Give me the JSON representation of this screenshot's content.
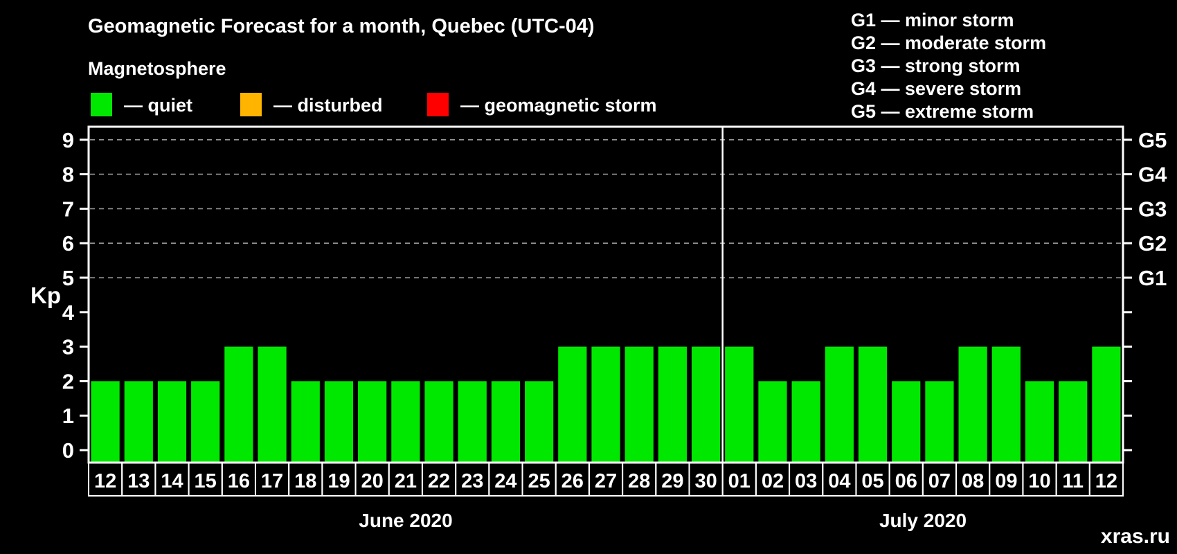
{
  "header": {
    "title": "Geomagnetic Forecast for a month, Quebec (UTC-04)",
    "subtitle": "Magnetosphere"
  },
  "legend": {
    "items": [
      {
        "key": "quiet",
        "label": "— quiet"
      },
      {
        "key": "disturbed",
        "label": "— disturbed"
      },
      {
        "key": "storm",
        "label": "— geomagnetic storm"
      }
    ]
  },
  "g_legend": {
    "items": [
      "G1 — minor storm",
      "G2 — moderate storm",
      "G3 — strong storm",
      "G4 — severe storm",
      "G5 — extreme storm"
    ]
  },
  "colors": {
    "quiet": "#00E800",
    "disturbed": "#FFB400",
    "storm": "#FF0000",
    "axis": "#FFFFFF",
    "grid": "#999999",
    "text": "#FFFFFF",
    "watermark": "#8C8C8C",
    "background": "#000000"
  },
  "watermark": "xras.ru",
  "chart_data": {
    "type": "bar",
    "title": "Geomagnetic Forecast for a month, Quebec (UTC-04)",
    "xlabel": "",
    "ylabel": "Kp",
    "ylim": [
      0,
      9
    ],
    "y_ticks": [
      0,
      1,
      2,
      3,
      4,
      5,
      6,
      7,
      8,
      9
    ],
    "gridlines_at": [
      5,
      6,
      7,
      8,
      9
    ],
    "grid": "dashed-horizontal",
    "right_axis": [
      {
        "kp": 5,
        "label": "G1"
      },
      {
        "kp": 6,
        "label": "G2"
      },
      {
        "kp": 7,
        "label": "G3"
      },
      {
        "kp": 8,
        "label": "G4"
      },
      {
        "kp": 9,
        "label": "G5"
      }
    ],
    "categories": [
      "12",
      "13",
      "14",
      "15",
      "16",
      "17",
      "18",
      "19",
      "20",
      "21",
      "22",
      "23",
      "24",
      "25",
      "26",
      "27",
      "28",
      "29",
      "30",
      "01",
      "02",
      "03",
      "04",
      "05",
      "06",
      "07",
      "08",
      "09",
      "10",
      "11",
      "12"
    ],
    "values": [
      2,
      2,
      2,
      2,
      3,
      3,
      2,
      2,
      2,
      2,
      2,
      2,
      2,
      2,
      3,
      3,
      3,
      3,
      3,
      3,
      2,
      2,
      3,
      3,
      2,
      2,
      3,
      3,
      2,
      2,
      3
    ],
    "bar_state": "quiet",
    "months": [
      {
        "label": "June 2020",
        "days": 19
      },
      {
        "label": "July 2020",
        "days": 12
      }
    ],
    "month_separator_after_index": 18
  }
}
